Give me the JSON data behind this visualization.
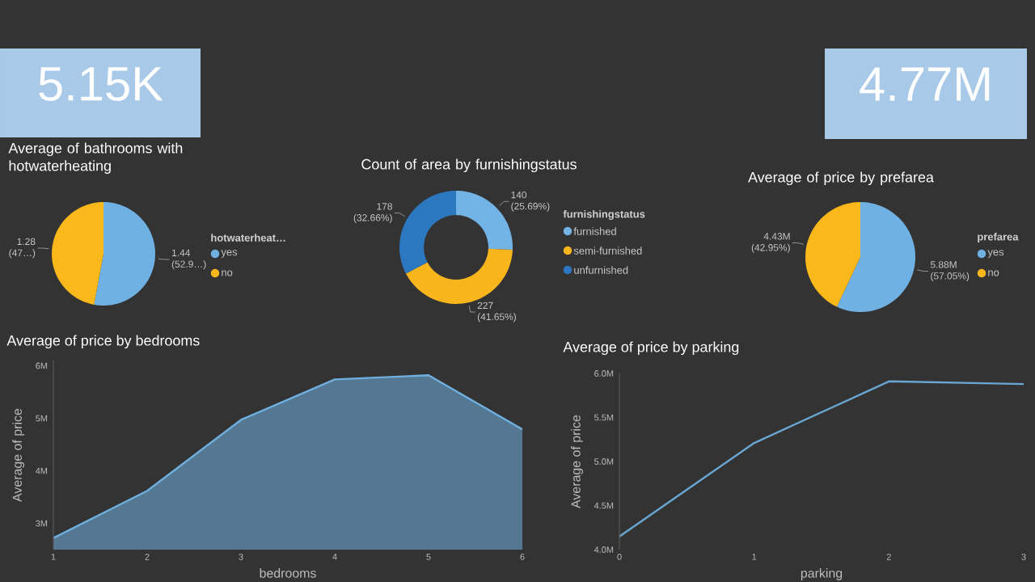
{
  "chart_data": [
    {
      "type": "other",
      "title": "5.15K",
      "color": "#a8c9e8"
    },
    {
      "type": "other",
      "title": "4.77M",
      "color": "#a8c9e8"
    },
    {
      "type": "pie",
      "title": "Average of bathrooms with hotwaterheating",
      "categories": [
        "yes",
        "no"
      ],
      "values": [
        1.44,
        1.28
      ],
      "colors": [
        "#6fb1e3",
        "#fbb81b"
      ],
      "value_labels": [
        "1.44 (52.9…)",
        "1.28 (47…)"
      ],
      "legend_title": "hotwaterheat…",
      "legend": "right"
    },
    {
      "type": "donut",
      "title": "Count of area by furnishingstatus",
      "categories": [
        "furnished",
        "semi-furnished",
        "unfurnished"
      ],
      "values": [
        140,
        227,
        178
      ],
      "colors": [
        "#72b4e6",
        "#f9b51c",
        "#2b78c1"
      ],
      "value_labels": [
        "140 (25.69%)",
        "227 (41.65%)",
        "178 (32.66%)"
      ],
      "legend_title": "furnishingstatus",
      "legend": "right"
    },
    {
      "type": "pie",
      "title": "Average of price by prefarea",
      "categories": [
        "yes",
        "no"
      ],
      "values": [
        5880000,
        4430000
      ],
      "colors": [
        "#6fb1e3",
        "#fbb81b"
      ],
      "value_labels": [
        "5.88M (57.05%)",
        "4.43M (42.95%)"
      ],
      "legend_title": "prefarea",
      "legend": "right"
    },
    {
      "type": "area",
      "title": "Average of price by bedrooms",
      "xlabel": "bedrooms",
      "ylabel": "Average of price",
      "x": [
        1,
        2,
        3,
        4,
        5,
        6
      ],
      "values": [
        2.72,
        3.62,
        4.97,
        5.74,
        5.82,
        4.79
      ],
      "color": "#6fb0e0",
      "xlim": [
        1,
        6
      ],
      "ylim": [
        2.5,
        6.1
      ],
      "xticks": [
        1,
        2,
        3,
        4,
        5,
        6
      ],
      "yticks": [
        {
          "value": 3,
          "label": "3M"
        },
        {
          "value": 4,
          "label": "4M"
        },
        {
          "value": 5,
          "label": "5M"
        },
        {
          "value": 6,
          "label": "6M"
        }
      ]
    },
    {
      "type": "line",
      "title": "Average of price by parking",
      "xlabel": "parking",
      "ylabel": "Average of price",
      "x": [
        0,
        1,
        2,
        3
      ],
      "values": [
        4.15,
        5.21,
        5.91,
        5.88
      ],
      "color": "#6aa6d2",
      "xlim": [
        0,
        3
      ],
      "ylim": [
        4.0,
        6.0
      ],
      "xticks": [
        0,
        1,
        2,
        3
      ],
      "yticks": [
        {
          "value": 4.0,
          "label": "4.0M"
        },
        {
          "value": 4.5,
          "label": "4.5M"
        },
        {
          "value": 5.0,
          "label": "5.0M"
        },
        {
          "value": 5.5,
          "label": "5.5M"
        },
        {
          "value": 6.0,
          "label": "6.0M"
        }
      ]
    }
  ]
}
